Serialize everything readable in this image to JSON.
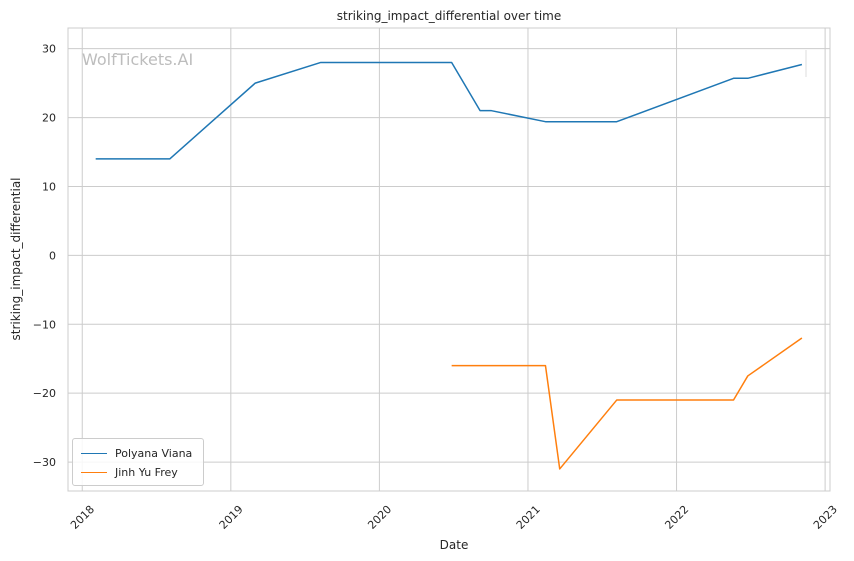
{
  "chart_data": {
    "type": "line",
    "title": "striking_impact_differential over time",
    "xlabel": "Date",
    "ylabel": "striking_impact_differential",
    "watermark": "WolfTickets.AI",
    "x_ticks": [
      "2018",
      "2019",
      "2020",
      "2021",
      "2022",
      "2023"
    ],
    "y_ticks": [
      "30",
      "20",
      "10",
      "0",
      "−10",
      "−20",
      "−30"
    ],
    "xlim": [
      "2017-11-27",
      "2023-01-13"
    ],
    "ylim": [
      -34.2,
      33.0
    ],
    "grid": true,
    "legend_position": "lower-left",
    "series": [
      {
        "name": "Polyana Viana",
        "color": "#1f77b4",
        "points": [
          [
            "2018-02-03",
            14.0
          ],
          [
            "2018-08-04",
            14.0
          ],
          [
            "2019-03-02",
            25.0
          ],
          [
            "2019-08-10",
            28.0
          ],
          [
            "2020-06-27",
            28.0
          ],
          [
            "2020-09-05",
            21.0
          ],
          [
            "2020-10-03",
            21.0
          ],
          [
            "2021-02-13",
            19.4
          ],
          [
            "2021-08-07",
            19.4
          ],
          [
            "2022-05-21",
            25.7
          ],
          [
            "2022-06-25",
            25.7
          ],
          [
            "2022-11-05",
            27.7
          ]
        ]
      },
      {
        "name": "Jinh Yu Frey",
        "color": "#ff7f0e",
        "points": [
          [
            "2020-06-27",
            -16.0
          ],
          [
            "2021-02-13",
            -16.0
          ],
          [
            "2021-03-20",
            -31.0
          ],
          [
            "2021-08-07",
            -21.0
          ],
          [
            "2022-05-21",
            -21.0
          ],
          [
            "2022-06-25",
            -17.5
          ],
          [
            "2022-11-05",
            -12.0
          ]
        ]
      }
    ]
  }
}
